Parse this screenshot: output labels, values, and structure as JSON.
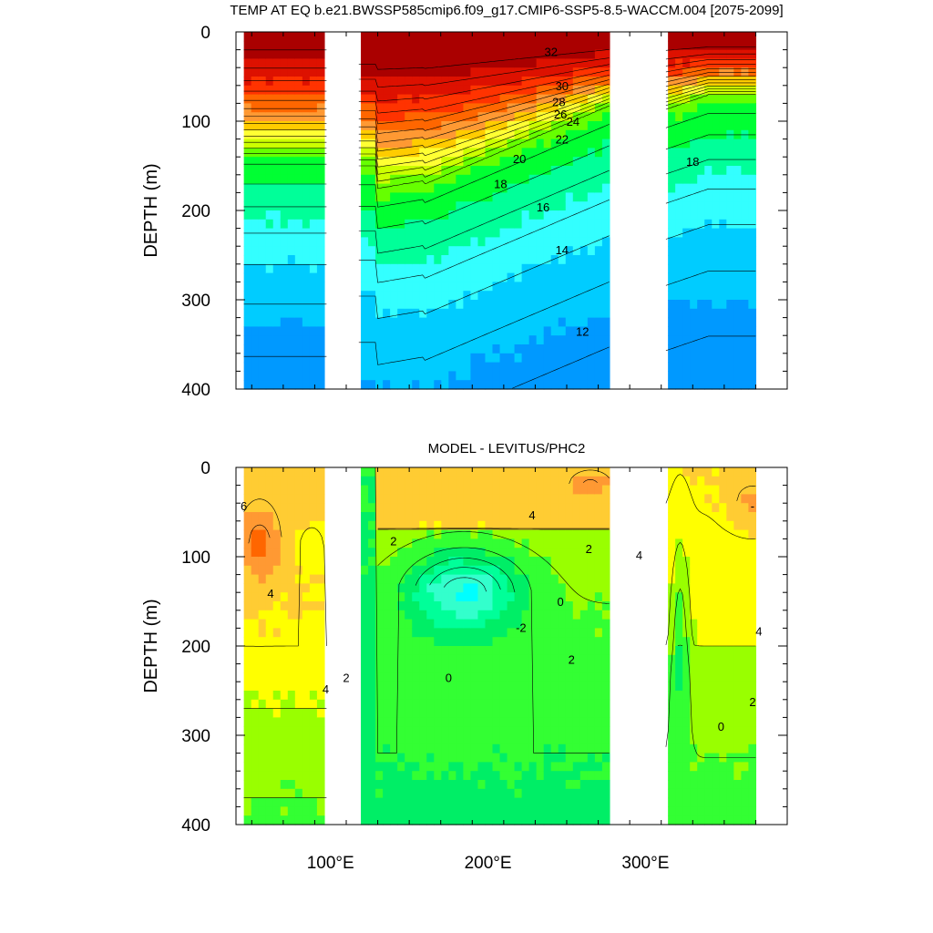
{
  "chart_data": [
    {
      "type": "heatmap",
      "subtype": "filled-contour",
      "title": "TEMP AT EQ b.e21.BWSSP585cmip6.f09_g17.CMIP6-SSP5-8.5-WACCM.004 [2075-2099]",
      "ylabel": "DEPTH (m)",
      "xlabel": "",
      "xlim": [
        40,
        390
      ],
      "ylim": [
        0,
        400
      ],
      "y_reversed": true,
      "x_ticks": [
        {
          "value": 100,
          "label": "100°E"
        },
        {
          "value": 200,
          "label": "200°E"
        },
        {
          "value": 300,
          "label": "300°E"
        }
      ],
      "y_ticks": [
        {
          "value": 0,
          "label": "0"
        },
        {
          "value": 100,
          "label": "100"
        },
        {
          "value": 200,
          "label": "200"
        },
        {
          "value": 300,
          "label": "300"
        },
        {
          "value": 400,
          "label": "400"
        }
      ],
      "contour_interval": 1,
      "contour_labels": [
        {
          "text": "32",
          "x": 240,
          "y": 22
        },
        {
          "text": "30",
          "x": 247,
          "y": 60
        },
        {
          "text": "28",
          "x": 245,
          "y": 78
        },
        {
          "text": "26",
          "x": 246,
          "y": 92
        },
        {
          "text": "24",
          "x": 254,
          "y": 100
        },
        {
          "text": "22",
          "x": 247,
          "y": 120
        },
        {
          "text": "20",
          "x": 220,
          "y": 142
        },
        {
          "text": "18",
          "x": 208,
          "y": 170
        },
        {
          "text": "18",
          "x": 330,
          "y": 145
        },
        {
          "text": "16",
          "x": 235,
          "y": 196
        },
        {
          "text": "14",
          "x": 247,
          "y": 244
        },
        {
          "text": "12",
          "x": 260,
          "y": 335
        }
      ],
      "land_gaps_x": [
        [
          98,
          118
        ],
        [
          278,
          313
        ]
      ],
      "colors": {
        "palette": [
          "#0022ff",
          "#0055ff",
          "#0099ff",
          "#00ccff",
          "#33ffff",
          "#00ff99",
          "#00ff33",
          "#66ff00",
          "#ccff00",
          "#ffff33",
          "#ffcc00",
          "#ff9933",
          "#ff6600",
          "#ff3300",
          "#dd1100",
          "#aa0000"
        ]
      }
    },
    {
      "type": "heatmap",
      "subtype": "filled-contour",
      "title": "MODEL - LEVITUS/PHC2",
      "ylabel": "DEPTH (m)",
      "xlabel": "",
      "xlim": [
        40,
        390
      ],
      "ylim": [
        0,
        400
      ],
      "y_reversed": true,
      "x_ticks": [
        {
          "value": 100,
          "label": "100°E"
        },
        {
          "value": 200,
          "label": "200°E"
        },
        {
          "value": 300,
          "label": "300°E"
        }
      ],
      "y_ticks": [
        {
          "value": 0,
          "label": "0"
        },
        {
          "value": 100,
          "label": "100"
        },
        {
          "value": 200,
          "label": "200"
        },
        {
          "value": 300,
          "label": "300"
        },
        {
          "value": 400,
          "label": "400"
        }
      ],
      "contour_interval": 1,
      "contour_labels": [
        {
          "text": "6",
          "x": 45,
          "y": 43
        },
        {
          "text": "4",
          "x": 62,
          "y": 141
        },
        {
          "text": "4",
          "x": 97,
          "y": 248
        },
        {
          "text": "4",
          "x": 228,
          "y": 53
        },
        {
          "text": "2",
          "x": 140,
          "y": 82
        },
        {
          "text": "2",
          "x": 264,
          "y": 91
        },
        {
          "text": "4",
          "x": 296,
          "y": 98
        },
        {
          "text": "0",
          "x": 246,
          "y": 150
        },
        {
          "text": "-2",
          "x": 221,
          "y": 179
        },
        {
          "text": "0",
          "x": 175,
          "y": 235
        },
        {
          "text": "2",
          "x": 253,
          "y": 215
        },
        {
          "text": "2",
          "x": 110,
          "y": 235
        },
        {
          "text": "2",
          "x": 368,
          "y": 262
        },
        {
          "text": "4",
          "x": 372,
          "y": 183
        },
        {
          "text": "0",
          "x": 348,
          "y": 290
        },
        {
          "text": "-",
          "x": 368,
          "y": 43
        }
      ],
      "land_gaps_x": [
        [
          98,
          118
        ],
        [
          278,
          313
        ]
      ],
      "colors": {
        "palette": [
          "#00ffff",
          "#33ffcc",
          "#00ff99",
          "#00ee66",
          "#33ff33",
          "#99ff00",
          "#ffff00",
          "#ffcc33",
          "#ff9933",
          "#ff6600"
        ]
      }
    }
  ]
}
